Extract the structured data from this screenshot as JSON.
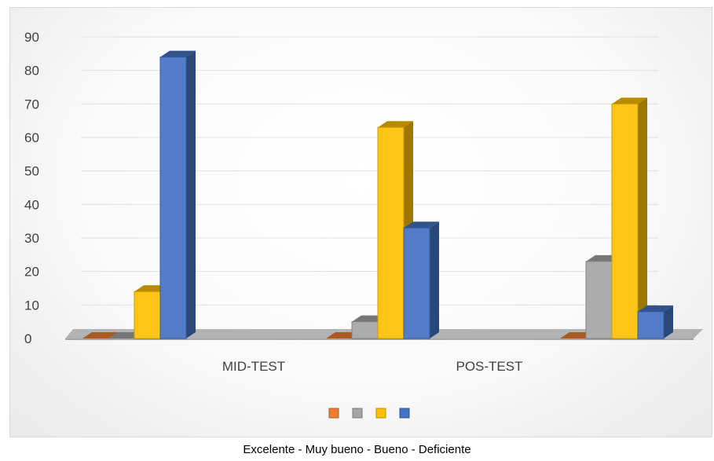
{
  "chart_data": {
    "type": "bar",
    "style": "3d-clustered-column",
    "categories": [
      "MID-TEST",
      "POS-TEST"
    ],
    "series": [
      {
        "key": "s1",
        "color": "#ED7D31",
        "values": [
          0,
          0
        ]
      },
      {
        "key": "s2",
        "color": "#A5A5A5",
        "values": [
          0,
          5
        ]
      },
      {
        "key": "s3",
        "color": "#FFC000",
        "values": [
          14,
          63
        ]
      },
      {
        "key": "s4",
        "color": "#4472C4",
        "values": [
          84,
          33
        ]
      }
    ],
    "third_group": {
      "values": [
        0,
        23,
        70,
        8
      ]
    },
    "yticks": [
      "0",
      "10",
      "20",
      "30",
      "40",
      "50",
      "60",
      "70",
      "80",
      "90"
    ],
    "ylim": [
      0,
      90
    ],
    "grid": true,
    "legend_position": "bottom",
    "caption": "Excelente - Muy bueno - Bueno - Deficiente"
  }
}
